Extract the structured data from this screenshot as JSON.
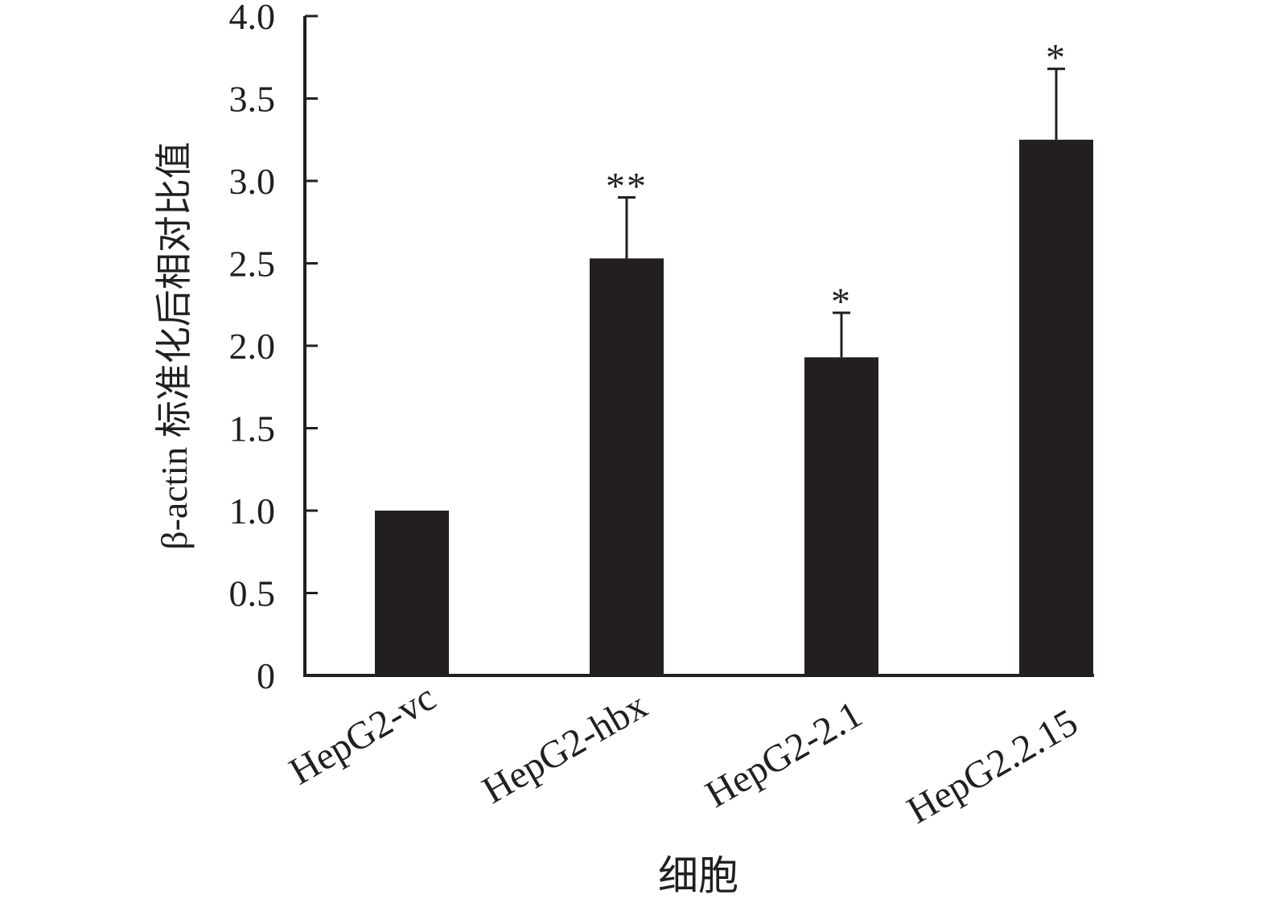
{
  "chart_data": {
    "type": "bar",
    "title": "",
    "xlabel": "细胞",
    "ylabel": "β-actin 标准化后相对比值",
    "categories": [
      "HepG2-vc",
      "HepG2-hbx",
      "HepG2-2.1",
      "HepG2.2.15"
    ],
    "values": [
      1.0,
      2.53,
      1.93,
      3.25
    ],
    "errors": [
      0.0,
      0.37,
      0.27,
      0.43
    ],
    "significance": [
      "",
      "**",
      "*",
      "*"
    ],
    "ylim": [
      0,
      4.0
    ],
    "yticks": [
      0,
      0.5,
      1.0,
      1.5,
      2.0,
      2.5,
      3.0,
      3.5,
      4.0
    ],
    "ytick_labels": [
      "0",
      "0.5",
      "1.0",
      "1.5",
      "2.0",
      "2.5",
      "3.0",
      "3.5",
      "4.0"
    ],
    "bar_color": "#231f20",
    "grid": false,
    "legend": "none"
  }
}
